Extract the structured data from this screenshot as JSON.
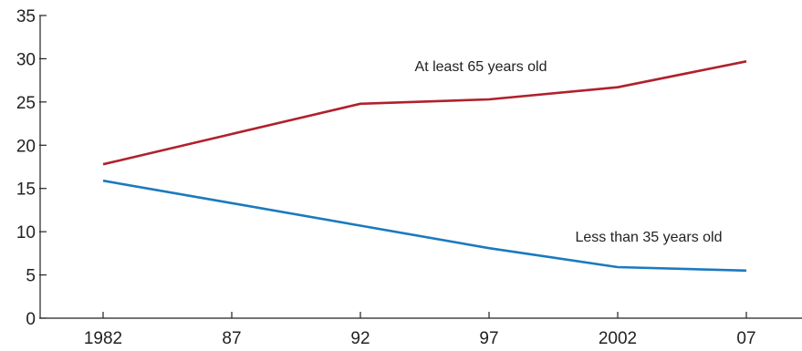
{
  "chart_data": {
    "type": "line",
    "x": [
      1982,
      1987,
      1992,
      1997,
      2002,
      2007
    ],
    "x_tick_labels": [
      "1982",
      "87",
      "92",
      "97",
      "2002",
      "07"
    ],
    "ylim": [
      0,
      35
    ],
    "y_ticks": [
      0,
      5,
      10,
      15,
      20,
      25,
      30,
      35
    ],
    "y_tick_labels": [
      "0",
      "5",
      "10",
      "15",
      "20",
      "25",
      "30",
      "35"
    ],
    "grid": false,
    "legend": "none",
    "series": [
      {
        "name": "At least 65 years old",
        "color": "#b0212b",
        "values": [
          17.8,
          21.3,
          24.8,
          25.3,
          26.7,
          29.7
        ]
      },
      {
        "name": "Less than 35 years old",
        "color": "#1a7abf",
        "values": [
          15.9,
          13.3,
          10.7,
          8.1,
          5.9,
          5.5
        ]
      }
    ]
  }
}
